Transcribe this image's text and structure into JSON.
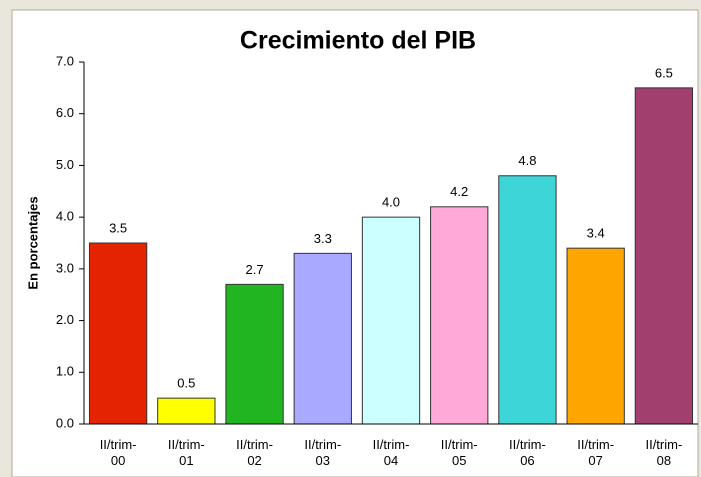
{
  "chart_data": {
    "type": "bar",
    "title": "Crecimiento del PIB",
    "y_label": "En porcentajes",
    "categories": [
      "II/trim-00",
      "II/trim-01",
      "II/trim-02",
      "II/trim-03",
      "II/trim-04",
      "II/trim-05",
      "II/trim-06",
      "II/trim-07",
      "II/trim-08"
    ],
    "values": [
      3.5,
      0.5,
      2.7,
      3.3,
      4.0,
      4.2,
      4.8,
      3.4,
      6.5
    ],
    "value_labels": [
      "3.5",
      "0.5",
      "2.7",
      "3.3",
      "4.0",
      "4.2",
      "4.8",
      "3.4",
      "6.5"
    ],
    "colors": [
      "#e42400",
      "#ffff00",
      "#22b522",
      "#a9a9ff",
      "#ccffff",
      "#ffa9d8",
      "#3dd5d8",
      "#ffa500",
      "#a1406f"
    ],
    "ylim": [
      0,
      7
    ],
    "yticks": [
      {
        "value": 0,
        "label": "0.0"
      },
      {
        "value": 1,
        "label": "1.0"
      },
      {
        "value": 2,
        "label": "2.0"
      },
      {
        "value": 3,
        "label": "3.0"
      },
      {
        "value": 4,
        "label": "4.0"
      },
      {
        "value": 5,
        "label": "5.0"
      },
      {
        "value": 6,
        "label": "6.0"
      },
      {
        "value": 7,
        "label": "7.0"
      }
    ],
    "grid": false
  }
}
